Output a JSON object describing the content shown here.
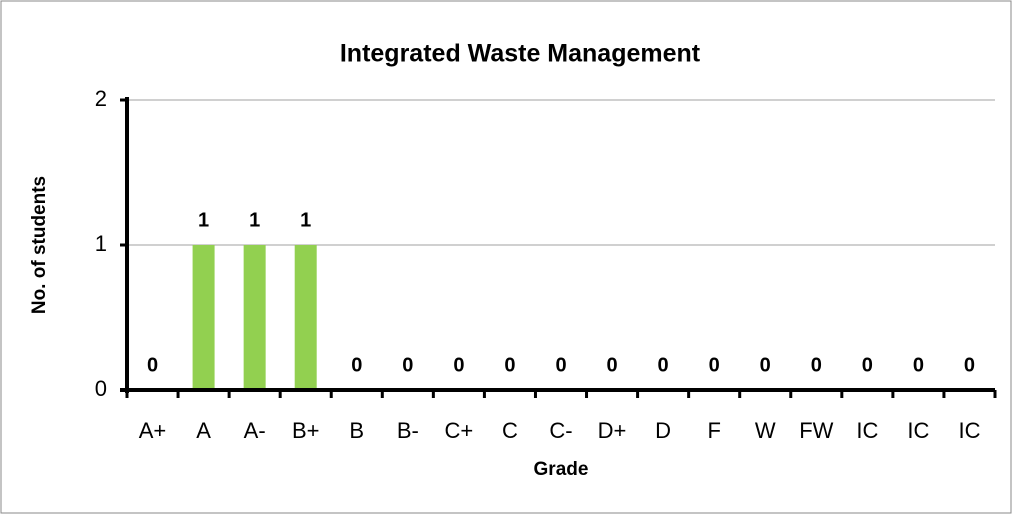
{
  "chart_data": {
    "type": "bar",
    "title": "Integrated Waste Management",
    "x_label": "Grade",
    "y_label": "No. of students",
    "categories": [
      "A+",
      "A",
      "A-",
      "B+",
      "B",
      "B-",
      "C+",
      "C",
      "C-",
      "D+",
      "D",
      "F",
      "W",
      "FW",
      "IC",
      "IC",
      "IC"
    ],
    "values": [
      0,
      1,
      1,
      1,
      0,
      0,
      0,
      0,
      0,
      0,
      0,
      0,
      0,
      0,
      0,
      0,
      0
    ],
    "color": "#92d050",
    "ylim": [
      0,
      2
    ],
    "yticks": [
      0,
      1,
      2
    ],
    "grid": true
  }
}
